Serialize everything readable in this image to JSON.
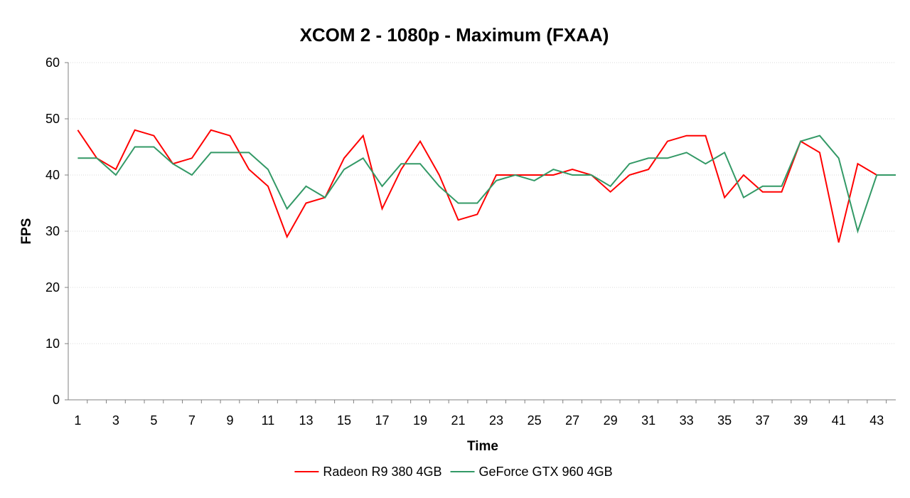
{
  "chart_data": {
    "type": "line",
    "title": "XCOM 2 - 1080p - Maximum (FXAA)",
    "xlabel": "Time",
    "ylabel": "FPS",
    "ylim": [
      0,
      60
    ],
    "yticks": [
      0,
      10,
      20,
      30,
      40,
      50,
      60
    ],
    "x": [
      1,
      2,
      3,
      4,
      5,
      6,
      7,
      8,
      9,
      10,
      11,
      12,
      13,
      14,
      15,
      16,
      17,
      18,
      19,
      20,
      21,
      22,
      23,
      24,
      25,
      26,
      27,
      28,
      29,
      30,
      31,
      32,
      33,
      34,
      35,
      36,
      37,
      38,
      39,
      40,
      41,
      42,
      43,
      44
    ],
    "xtick_labels": [
      "1",
      "3",
      "5",
      "7",
      "9",
      "11",
      "13",
      "15",
      "17",
      "19",
      "21",
      "23",
      "25",
      "27",
      "29",
      "31",
      "33",
      "35",
      "37",
      "39",
      "41",
      "43"
    ],
    "legend_position": "bottom",
    "grid": true,
    "series": [
      {
        "name": "Radeon R9 380 4GB",
        "color": "#ff0000",
        "values": [
          48,
          43,
          41,
          48,
          47,
          42,
          43,
          48,
          47,
          41,
          38,
          29,
          35,
          36,
          43,
          47,
          34,
          41,
          46,
          40,
          32,
          33,
          40,
          40,
          40,
          40,
          41,
          40,
          37,
          40,
          41,
          46,
          47,
          47,
          36,
          40,
          37,
          37,
          46,
          44,
          28,
          42,
          40,
          null
        ]
      },
      {
        "name": "GeForce GTX 960 4GB",
        "color": "#339966",
        "values": [
          43,
          43,
          40,
          45,
          45,
          42,
          40,
          44,
          44,
          44,
          41,
          34,
          38,
          36,
          41,
          43,
          38,
          42,
          42,
          38,
          35,
          35,
          39,
          40,
          39,
          41,
          40,
          40,
          38,
          42,
          43,
          43,
          44,
          42,
          44,
          36,
          38,
          38,
          46,
          47,
          43,
          30,
          40,
          40
        ]
      }
    ]
  }
}
